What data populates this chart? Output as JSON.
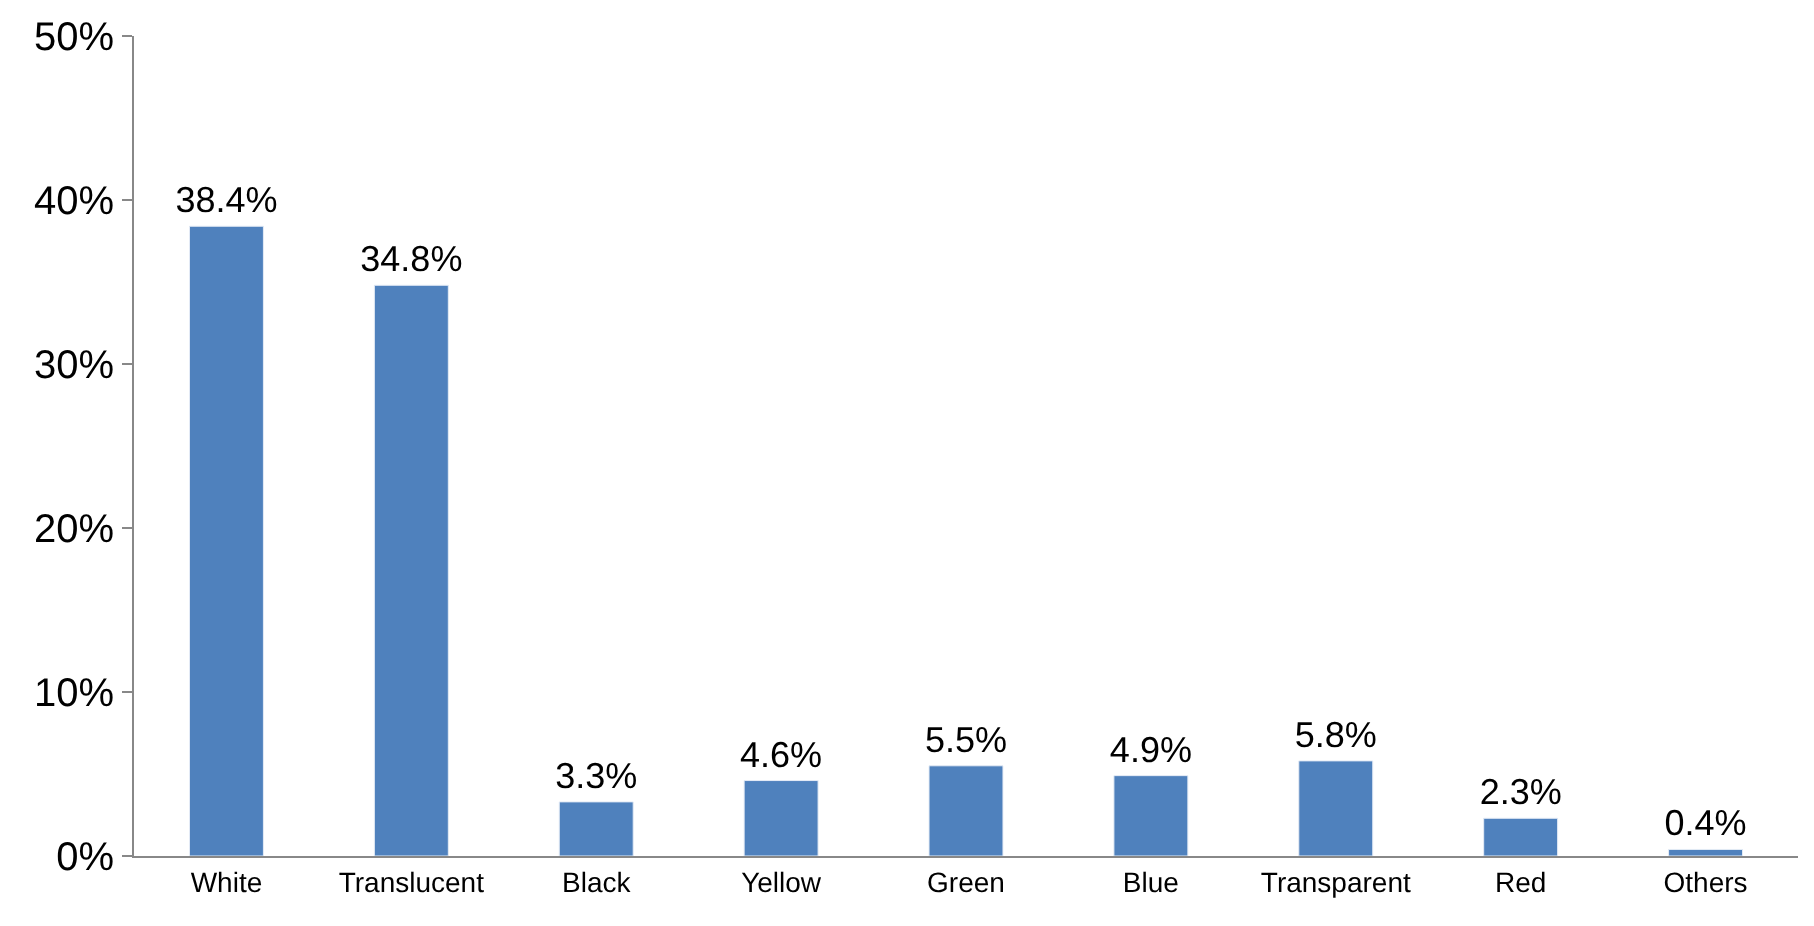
{
  "chart_data": {
    "type": "bar",
    "categories": [
      "White",
      "Translucent",
      "Black",
      "Yellow",
      "Green",
      "Blue",
      "Transparent",
      "Red",
      "Others"
    ],
    "values": [
      38.4,
      34.8,
      3.3,
      4.6,
      5.5,
      4.9,
      5.8,
      2.3,
      0.4
    ],
    "value_labels": [
      "38.4%",
      "34.8%",
      "3.3%",
      "4.6%",
      "5.5%",
      "4.9%",
      "5.8%",
      "2.3%",
      "0.4%"
    ],
    "color": "#4f81bd",
    "ylim": [
      0,
      50
    ],
    "yticks": [
      {
        "value": 0,
        "label": "0%"
      },
      {
        "value": 10,
        "label": "10%"
      },
      {
        "value": 20,
        "label": "20%"
      },
      {
        "value": 30,
        "label": "30%"
      },
      {
        "value": 40,
        "label": "40%"
      },
      {
        "value": 50,
        "label": "50%"
      }
    ],
    "legend": false
  }
}
